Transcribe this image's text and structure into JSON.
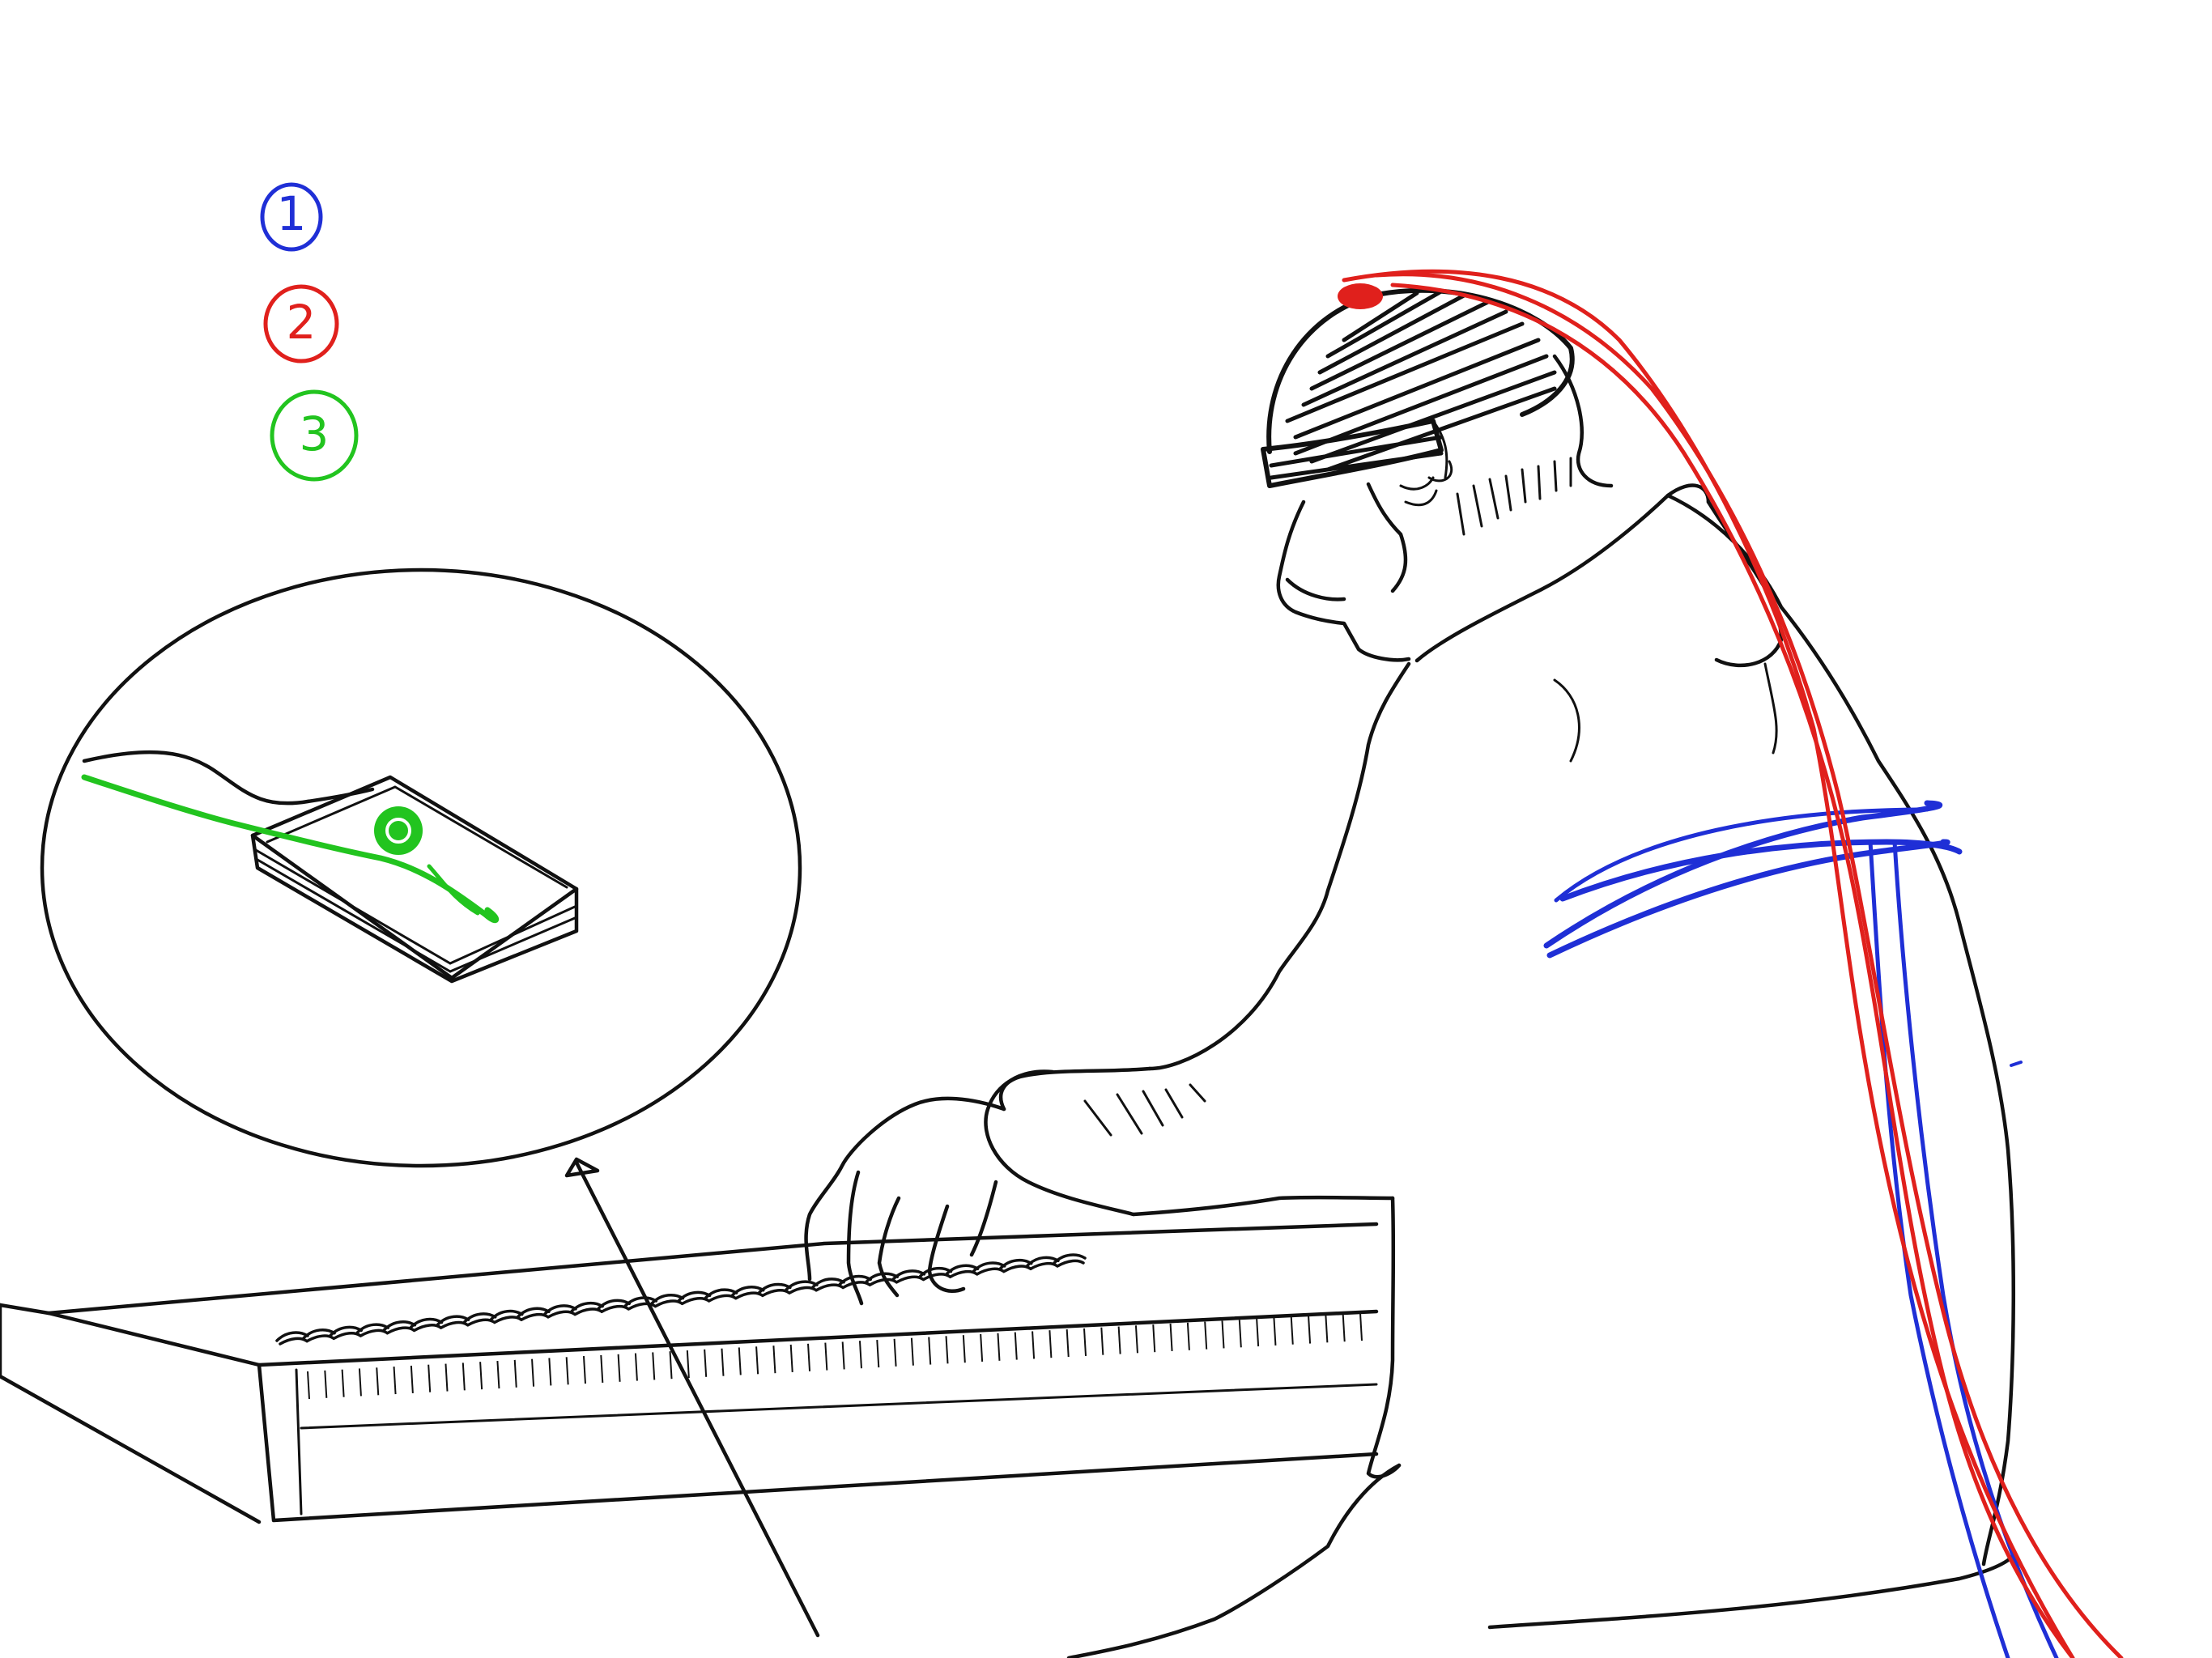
{
  "legend": {
    "items": [
      {
        "number": "1",
        "color": "#1f2fd6",
        "icon": "circled-number-icon"
      },
      {
        "number": "2",
        "color": "#e0201c",
        "icon": "circled-number-icon"
      },
      {
        "number": "3",
        "color": "#22c41f",
        "icon": "circled-number-icon"
      }
    ]
  },
  "colors": {
    "ink": "#111111",
    "marker_1": "#1f2fd6",
    "marker_2": "#e0201c",
    "marker_3": "#22c41f",
    "background": "#ffffff"
  }
}
